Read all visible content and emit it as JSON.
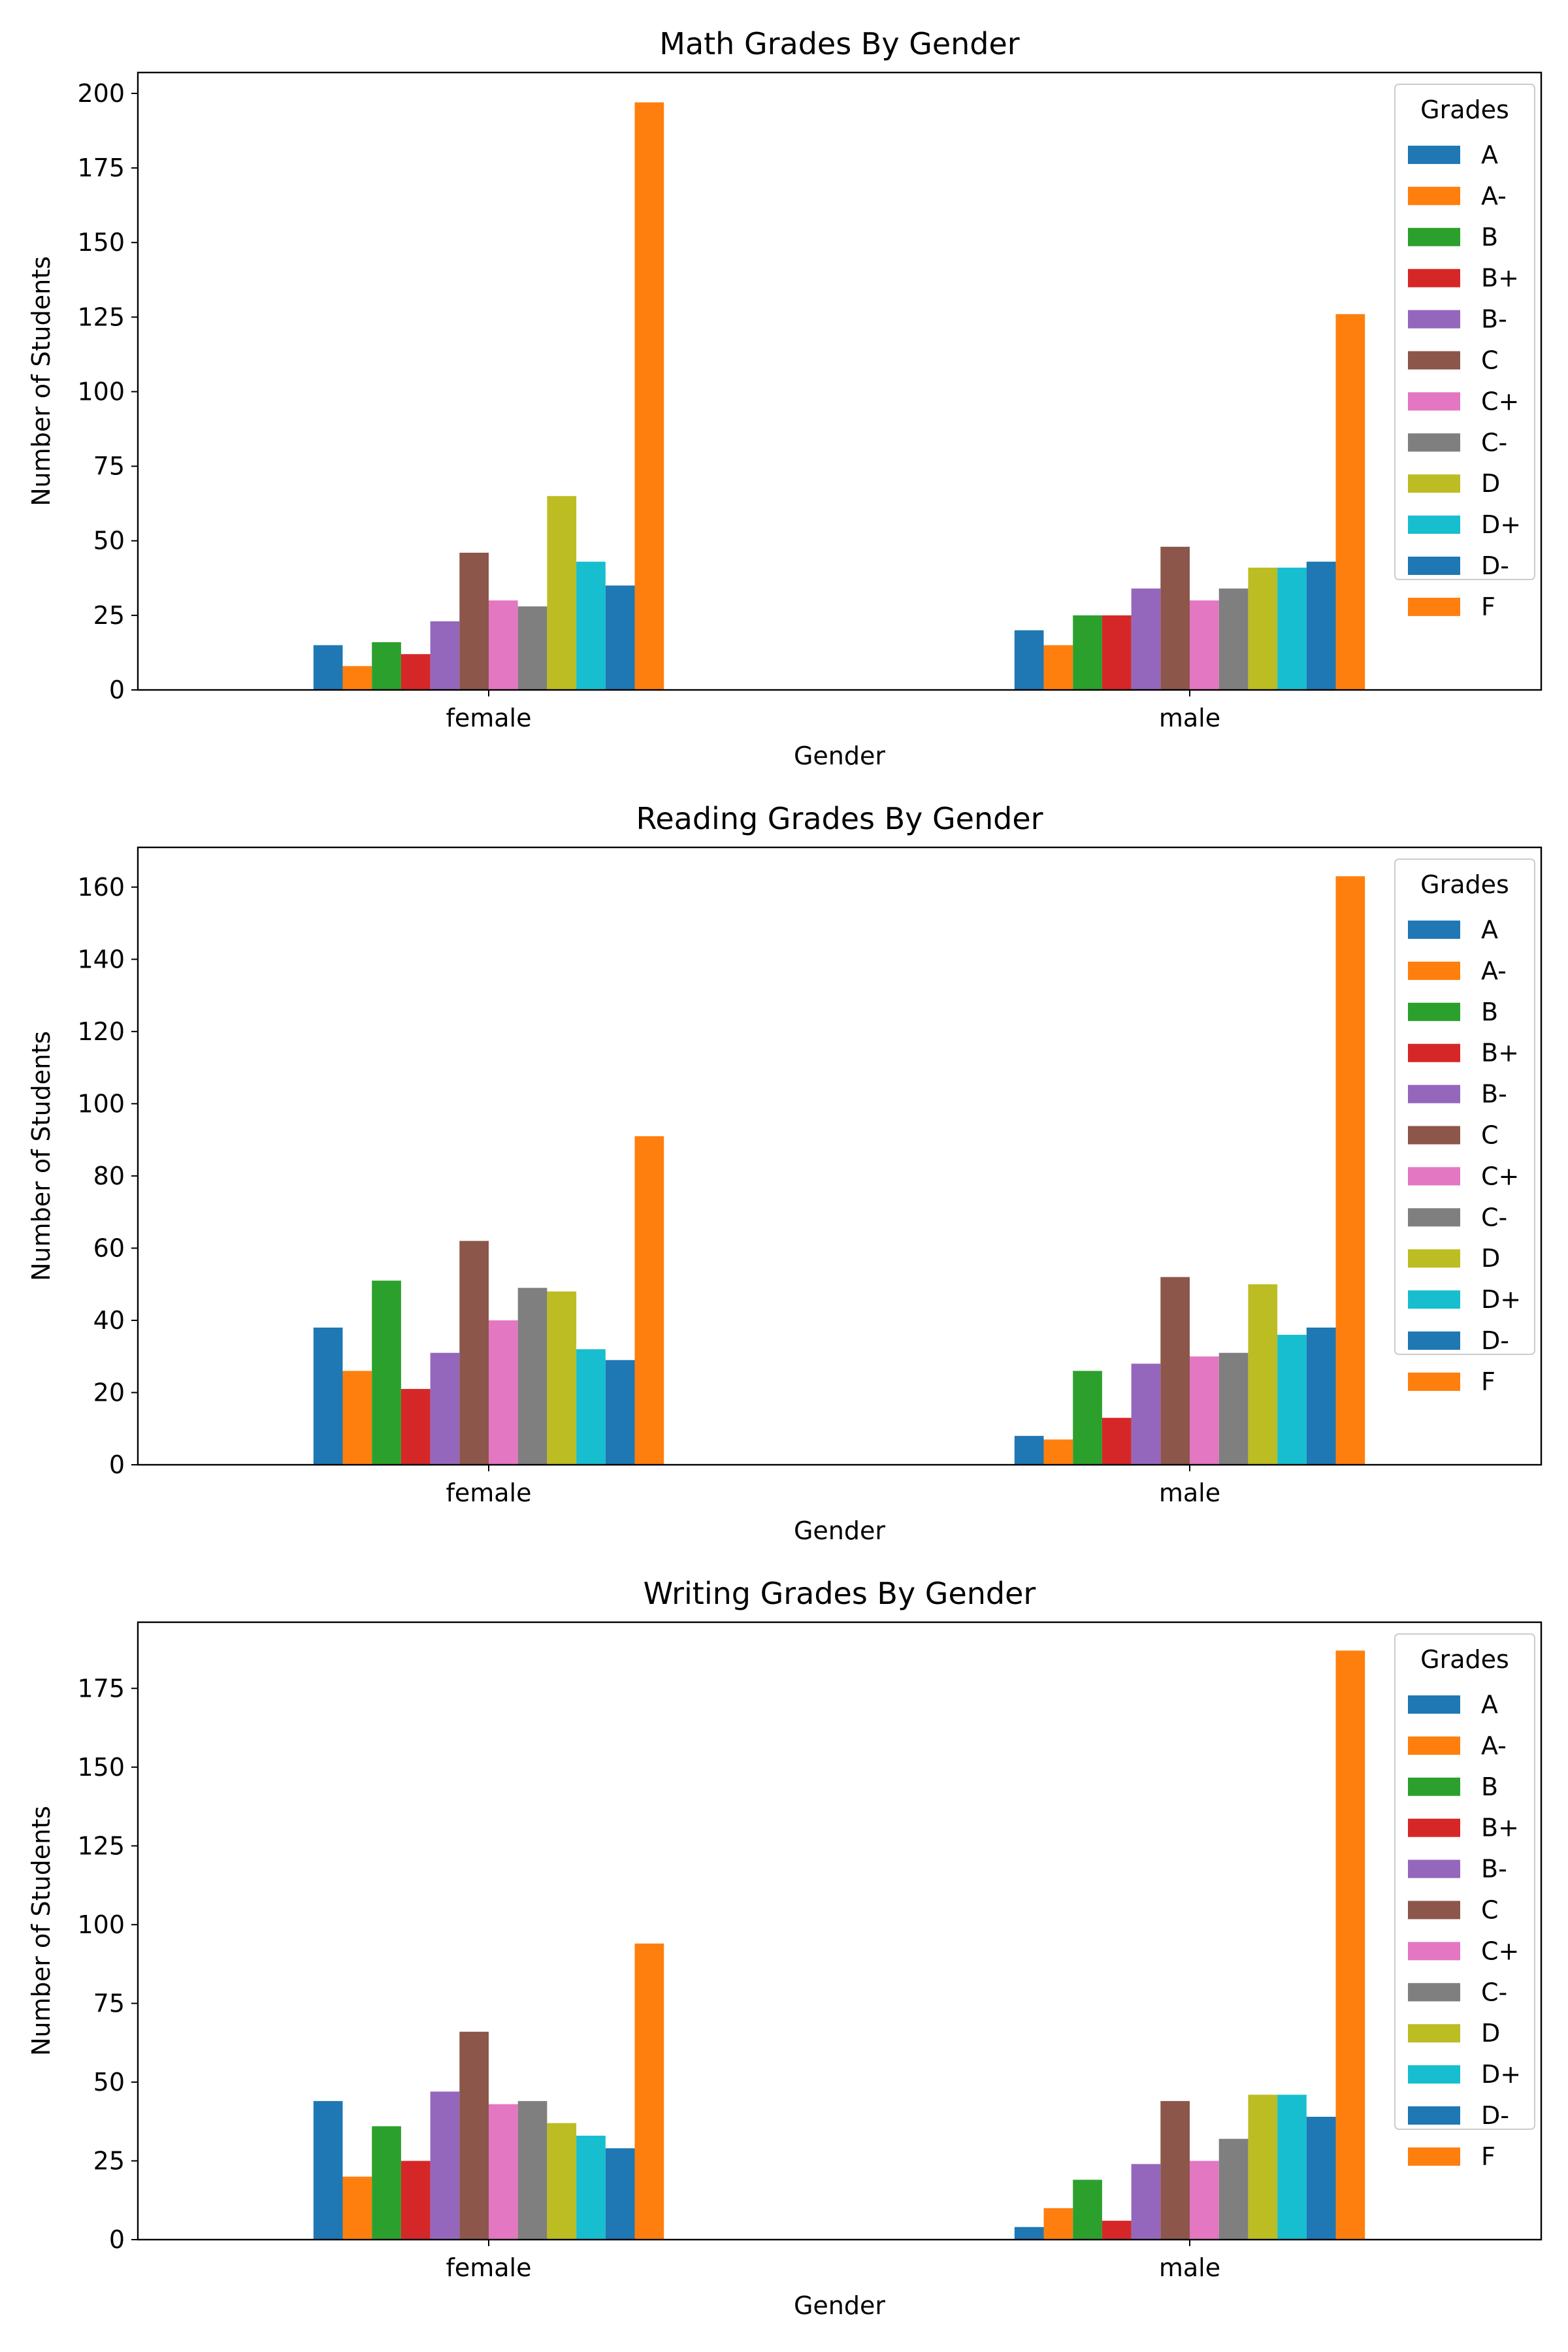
{
  "chart_data": [
    {
      "type": "bar",
      "title": "Math Grades By Gender",
      "xlabel": "Gender",
      "ylabel": "Number of Students",
      "categories": [
        "female",
        "male"
      ],
      "ylim": [
        0,
        207
      ],
      "yticks": [
        0,
        25,
        50,
        75,
        100,
        125,
        150,
        175,
        200
      ],
      "legend_title": "Grades",
      "legend_position": "top-right",
      "grid": false,
      "series": [
        {
          "name": "A",
          "color": "#1f77b4",
          "values": [
            15,
            20
          ]
        },
        {
          "name": "A-",
          "color": "#ff7f0e",
          "values": [
            8,
            15
          ]
        },
        {
          "name": "B",
          "color": "#2ca02c",
          "values": [
            16,
            25
          ]
        },
        {
          "name": "B+",
          "color": "#d62728",
          "values": [
            12,
            25
          ]
        },
        {
          "name": "B-",
          "color": "#9467bd",
          "values": [
            23,
            34
          ]
        },
        {
          "name": "C",
          "color": "#8c564b",
          "values": [
            46,
            48
          ]
        },
        {
          "name": "C+",
          "color": "#e377c2",
          "values": [
            30,
            30
          ]
        },
        {
          "name": "C-",
          "color": "#7f7f7f",
          "values": [
            28,
            34
          ]
        },
        {
          "name": "D",
          "color": "#bcbd22",
          "values": [
            65,
            41
          ]
        },
        {
          "name": "D+",
          "color": "#17becf",
          "values": [
            43,
            41
          ]
        },
        {
          "name": "D-",
          "color": "#1f77b4",
          "values": [
            35,
            43
          ]
        },
        {
          "name": "F",
          "color": "#ff7f0e",
          "values": [
            197,
            126
          ]
        }
      ]
    },
    {
      "type": "bar",
      "title": "Reading Grades By Gender",
      "xlabel": "Gender",
      "ylabel": "Number of Students",
      "categories": [
        "female",
        "male"
      ],
      "ylim": [
        0,
        171
      ],
      "yticks": [
        0,
        20,
        40,
        60,
        80,
        100,
        120,
        140,
        160
      ],
      "legend_title": "Grades",
      "legend_position": "top-right",
      "grid": false,
      "series": [
        {
          "name": "A",
          "color": "#1f77b4",
          "values": [
            38,
            8
          ]
        },
        {
          "name": "A-",
          "color": "#ff7f0e",
          "values": [
            26,
            7
          ]
        },
        {
          "name": "B",
          "color": "#2ca02c",
          "values": [
            51,
            26
          ]
        },
        {
          "name": "B+",
          "color": "#d62728",
          "values": [
            21,
            13
          ]
        },
        {
          "name": "B-",
          "color": "#9467bd",
          "values": [
            31,
            28
          ]
        },
        {
          "name": "C",
          "color": "#8c564b",
          "values": [
            62,
            52
          ]
        },
        {
          "name": "C+",
          "color": "#e377c2",
          "values": [
            40,
            30
          ]
        },
        {
          "name": "C-",
          "color": "#7f7f7f",
          "values": [
            49,
            31
          ]
        },
        {
          "name": "D",
          "color": "#bcbd22",
          "values": [
            48,
            50
          ]
        },
        {
          "name": "D+",
          "color": "#17becf",
          "values": [
            32,
            36
          ]
        },
        {
          "name": "D-",
          "color": "#1f77b4",
          "values": [
            29,
            38
          ]
        },
        {
          "name": "F",
          "color": "#ff7f0e",
          "values": [
            91,
            163
          ]
        }
      ]
    },
    {
      "type": "bar",
      "title": "Writing Grades By Gender",
      "xlabel": "Gender",
      "ylabel": "Number of Students",
      "categories": [
        "female",
        "male"
      ],
      "ylim": [
        0,
        196
      ],
      "yticks": [
        0,
        25,
        50,
        75,
        100,
        125,
        150,
        175
      ],
      "legend_title": "Grades",
      "legend_position": "top-right",
      "grid": false,
      "series": [
        {
          "name": "A",
          "color": "#1f77b4",
          "values": [
            44,
            4
          ]
        },
        {
          "name": "A-",
          "color": "#ff7f0e",
          "values": [
            20,
            10
          ]
        },
        {
          "name": "B",
          "color": "#2ca02c",
          "values": [
            36,
            19
          ]
        },
        {
          "name": "B+",
          "color": "#d62728",
          "values": [
            25,
            6
          ]
        },
        {
          "name": "B-",
          "color": "#9467bd",
          "values": [
            47,
            24
          ]
        },
        {
          "name": "C",
          "color": "#8c564b",
          "values": [
            66,
            44
          ]
        },
        {
          "name": "C+",
          "color": "#e377c2",
          "values": [
            43,
            25
          ]
        },
        {
          "name": "C-",
          "color": "#7f7f7f",
          "values": [
            44,
            32
          ]
        },
        {
          "name": "D",
          "color": "#bcbd22",
          "values": [
            37,
            46
          ]
        },
        {
          "name": "D+",
          "color": "#17becf",
          "values": [
            33,
            46
          ]
        },
        {
          "name": "D-",
          "color": "#1f77b4",
          "values": [
            29,
            39
          ]
        },
        {
          "name": "F",
          "color": "#ff7f0e",
          "values": [
            94,
            187
          ]
        }
      ]
    }
  ]
}
